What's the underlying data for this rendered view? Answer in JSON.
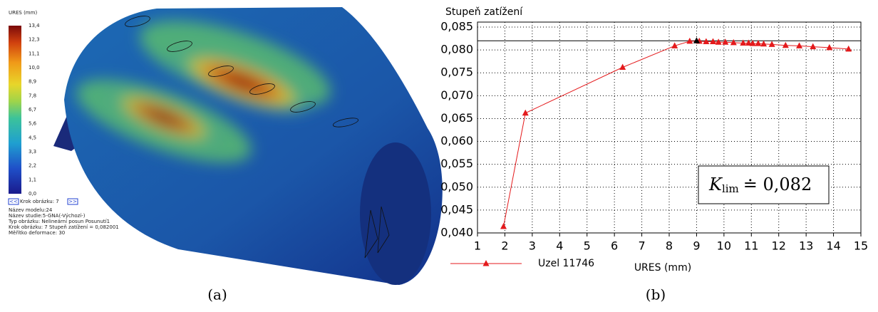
{
  "figure_a": {
    "colorbar_title": "URES (mm)",
    "colorbar_labels": [
      "13,4",
      "12,3",
      "11,1",
      "10,0",
      "8,9",
      "7,8",
      "6,7",
      "5,6",
      "4,5",
      "3,3",
      "2,2",
      "1,1",
      "0,0"
    ],
    "prev": "<<",
    "step": "Krok obrázku: 7",
    "next": ">>",
    "info": [
      "Název modelu:24",
      "Název studie:5-GNA(-Výchozí-)",
      "Typ obrázku: Nelineární posun Posunutí1",
      "Krok obrázku: 7   Stupeň zatížení = 0,082001",
      "Měřítko deformace: 30"
    ],
    "caption": "(a)"
  },
  "chart_data": {
    "type": "line",
    "y_label": "Stupeň zatížení",
    "x_label": "URES (mm)",
    "caption": "(b)",
    "grid": true,
    "xlim": [
      1,
      15
    ],
    "xticks": [
      1,
      2,
      3,
      4,
      5,
      6,
      7,
      8,
      9,
      10,
      11,
      12,
      13,
      14,
      15
    ],
    "ylim": [
      0.04,
      0.085
    ],
    "yticks": [
      {
        "value": 0.04,
        "label": "0,040"
      },
      {
        "value": 0.045,
        "label": "0,045"
      },
      {
        "value": 0.05,
        "label": "0,050"
      },
      {
        "value": 0.055,
        "label": "0,055"
      },
      {
        "value": 0.06,
        "label": "0,060"
      },
      {
        "value": 0.065,
        "label": "0,065"
      },
      {
        "value": 0.07,
        "label": "0,070"
      },
      {
        "value": 0.075,
        "label": "0,075"
      },
      {
        "value": 0.08,
        "label": "0,080"
      },
      {
        "value": 0.085,
        "label": "0,085"
      }
    ],
    "reference_line": 0.082,
    "series": [
      {
        "name": "Uzel 11746",
        "color": "#e41a1c",
        "x": [
          1.95,
          2.75,
          6.3,
          8.2,
          8.75,
          9.1,
          9.35,
          9.6,
          9.8,
          10.05,
          10.35,
          10.7,
          10.9,
          11.05,
          11.25,
          11.45,
          11.75,
          12.25,
          12.75,
          13.25,
          13.85,
          14.55
        ],
        "values": [
          0.0414,
          0.0662,
          0.0762,
          0.0809,
          0.0819,
          0.0819,
          0.0818,
          0.0818,
          0.0817,
          0.0817,
          0.0816,
          0.0815,
          0.0815,
          0.0814,
          0.0814,
          0.0813,
          0.0812,
          0.081,
          0.0809,
          0.0807,
          0.0805,
          0.0802
        ]
      }
    ],
    "marker": {
      "x": 9.0,
      "value": 0.082,
      "color": "#000000"
    },
    "annotation": {
      "symbol": "K",
      "subscript": "lim",
      "text": "≐ 0,082"
    }
  }
}
